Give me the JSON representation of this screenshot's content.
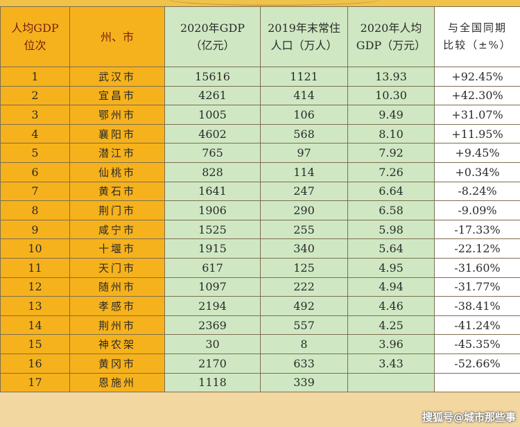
{
  "headers": {
    "rank": [
      "人均GDP",
      "位次"
    ],
    "city": "州、市",
    "gdp": [
      "2020年GDP",
      "（亿元）"
    ],
    "population": [
      "2019年末常住",
      "人口（万人）"
    ],
    "per_capita": [
      "2020年人均",
      "GDP（万元）"
    ],
    "compare": [
      "与全国同期",
      "比较（±%）"
    ]
  },
  "rows": [
    {
      "rank": "1",
      "city": "武汉市",
      "gdp": "15616",
      "pop": "1121",
      "pc": "13.93",
      "cmp": "+92.45%"
    },
    {
      "rank": "2",
      "city": "宜昌市",
      "gdp": "4261",
      "pop": "414",
      "pc": "10.30",
      "cmp": "+42.30%"
    },
    {
      "rank": "3",
      "city": "鄂州市",
      "gdp": "1005",
      "pop": "106",
      "pc": "9.49",
      "cmp": "+31.07%"
    },
    {
      "rank": "4",
      "city": "襄阳市",
      "gdp": "4602",
      "pop": "568",
      "pc": "8.10",
      "cmp": "+11.95%"
    },
    {
      "rank": "5",
      "city": "潜江市",
      "gdp": "765",
      "pop": "97",
      "pc": "7.92",
      "cmp": "+9.45%"
    },
    {
      "rank": "6",
      "city": "仙桃市",
      "gdp": "828",
      "pop": "114",
      "pc": "7.26",
      "cmp": "+0.34%"
    },
    {
      "rank": "7",
      "city": "黄石市",
      "gdp": "1641",
      "pop": "247",
      "pc": "6.64",
      "cmp": "-8.24%"
    },
    {
      "rank": "8",
      "city": "荆门市",
      "gdp": "1906",
      "pop": "290",
      "pc": "6.58",
      "cmp": "-9.09%"
    },
    {
      "rank": "9",
      "city": "咸宁市",
      "gdp": "1525",
      "pop": "255",
      "pc": "5.98",
      "cmp": "-17.33%"
    },
    {
      "rank": "10",
      "city": "十堰市",
      "gdp": "1915",
      "pop": "340",
      "pc": "5.64",
      "cmp": "-22.12%"
    },
    {
      "rank": "11",
      "city": "天门市",
      "gdp": "617",
      "pop": "125",
      "pc": "4.95",
      "cmp": "-31.60%"
    },
    {
      "rank": "12",
      "city": "随州市",
      "gdp": "1097",
      "pop": "222",
      "pc": "4.94",
      "cmp": "-31.77%"
    },
    {
      "rank": "13",
      "city": "孝感市",
      "gdp": "2194",
      "pop": "492",
      "pc": "4.46",
      "cmp": "-38.41%"
    },
    {
      "rank": "14",
      "city": "荆州市",
      "gdp": "2369",
      "pop": "557",
      "pc": "4.25",
      "cmp": "-41.24%"
    },
    {
      "rank": "15",
      "city": "神农架",
      "gdp": "30",
      "pop": "8",
      "pc": "3.96",
      "cmp": "-45.35%"
    },
    {
      "rank": "16",
      "city": "黄冈市",
      "gdp": "2170",
      "pop": "633",
      "pc": "3.43",
      "cmp": "-52.66%"
    },
    {
      "rank": "17",
      "city": "恩施州",
      "gdp": "1118",
      "pop": "339",
      "pc": "",
      "cmp": ""
    }
  ],
  "watermark": "搜狐号@城市那些事"
}
